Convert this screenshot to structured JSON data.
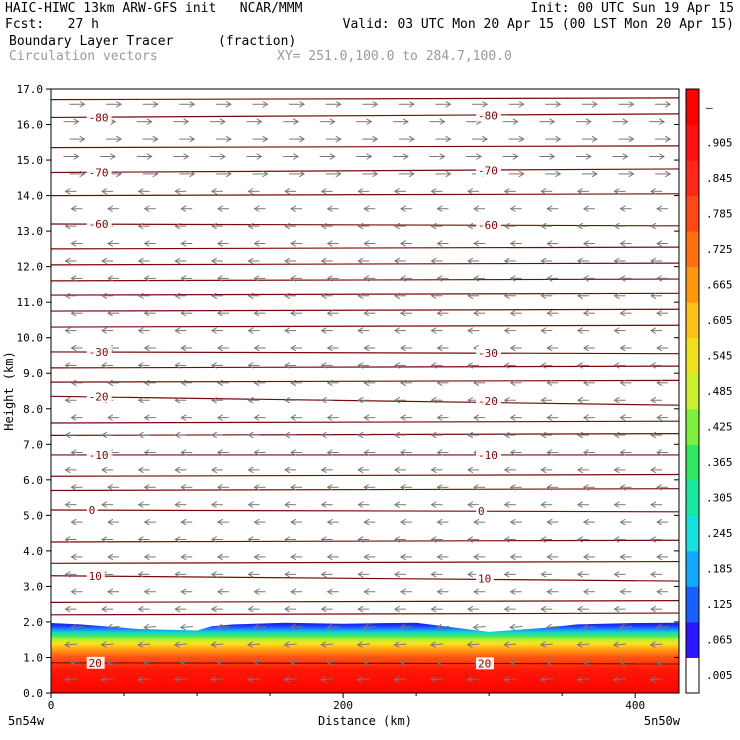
{
  "header": {
    "line1_left": "HAIC-HIWC 13km ARW-GFS init   NCAR/MMM",
    "line1_right": "Init: 00 UTC Sun 19 Apr 15",
    "line2_left": "Fcst:   27 h",
    "line2_right": "Valid: 03 UTC Mon 20 Apr 15 (00 LST Mon 20 Apr 15)",
    "field1_name": "Boundary Layer Tracer",
    "field1_units": "(fraction)",
    "field2_name": "Circulation vectors",
    "xy_range": "XY= 251.0,100.0 to 284.7,100.0"
  },
  "chart_data": {
    "type": "heatmap",
    "xlabel": "Distance (km)",
    "ylabel": "Height (km)",
    "xlim": [
      0,
      430
    ],
    "ylim": [
      0,
      17
    ],
    "x_ticks": [
      {
        "value": 0,
        "label": "0"
      },
      {
        "value": 200,
        "label": "200"
      },
      {
        "value": 400,
        "label": "400"
      }
    ],
    "x_end_labels": {
      "left": "5n54w",
      "right": "5n50w"
    },
    "y_ticks": [
      "0.0",
      "1.0",
      "2.0",
      "3.0",
      "4.0",
      "5.0",
      "6.0",
      "7.0",
      "8.0",
      "9.0",
      "10.0",
      "11.0",
      "12.0",
      "13.0",
      "14.0",
      "15.0",
      "16.0",
      "17.0"
    ],
    "colorbar": {
      "labels": [
        ".005",
        ".065",
        ".125",
        ".185",
        ".245",
        ".305",
        ".365",
        ".425",
        ".485",
        ".545",
        ".605",
        ".665",
        ".725",
        ".785",
        ".845",
        ".905",
        "–"
      ],
      "colors": [
        "#ffffff",
        "#2818ff",
        "#1a60ff",
        "#14a8ff",
        "#18e0e0",
        "#18e8a0",
        "#30e860",
        "#80f040",
        "#c8f030",
        "#f0e020",
        "#ffc018",
        "#ff9810",
        "#ff7010",
        "#ff4818",
        "#ff2818",
        "#ff1010",
        "#ff0000"
      ]
    },
    "tracer_top_km": [
      [
        0,
        1.97
      ],
      [
        20,
        1.93
      ],
      [
        60,
        1.8
      ],
      [
        100,
        1.76
      ],
      [
        110,
        1.88
      ],
      [
        125,
        1.93
      ],
      [
        160,
        1.98
      ],
      [
        200,
        1.95
      ],
      [
        250,
        1.98
      ],
      [
        300,
        1.72
      ],
      [
        340,
        1.84
      ],
      [
        360,
        1.93
      ],
      [
        400,
        1.97
      ],
      [
        430,
        1.98
      ]
    ],
    "temperature_contour_labels": [
      "-80",
      "-80",
      "-70",
      "-70",
      "-60",
      "-60",
      "-30",
      "-20",
      "-20",
      "-10",
      "-10",
      "0",
      "0",
      "10",
      "10",
      "20",
      "20"
    ],
    "temperature_contours": [
      {
        "label": "-80",
        "y_left": 16.2,
        "y_right": 16.3
      },
      {
        "label": "-70",
        "y_left": 14.65,
        "y_right": 14.75
      },
      {
        "label": "-60",
        "y_left": 13.2,
        "y_right": 13.15
      },
      {
        "label": "-30",
        "y_left": 9.6,
        "y_right": 9.55
      },
      {
        "label": "-20",
        "y_left": 8.35,
        "y_right": 8.1
      },
      {
        "label": "-10",
        "y_left": 6.7,
        "y_right": 6.7
      },
      {
        "label": "0",
        "y_left": 5.15,
        "y_right": 5.1
      },
      {
        "label": "10",
        "y_left": 3.3,
        "y_right": 3.15
      },
      {
        "label": "20",
        "y_left": 0.85,
        "y_right": 0.82
      }
    ],
    "other_contour_levels_km": [
      16.7,
      15.35,
      14.0,
      12.5,
      12.05,
      11.6,
      11.2,
      10.75,
      10.3,
      9.15,
      8.75,
      7.6,
      7.25,
      6.1,
      5.7,
      4.25,
      3.65,
      2.55,
      2.2
    ]
  }
}
